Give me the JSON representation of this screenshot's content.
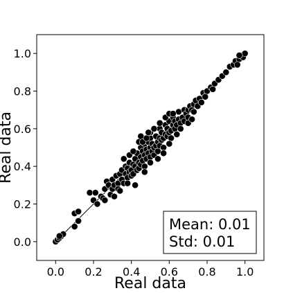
{
  "chart_data": {
    "type": "scatter",
    "xlabel": "Real data",
    "ylabel": "Real data",
    "xlim": [
      -0.1,
      1.1
    ],
    "ylim": [
      -0.1,
      1.1
    ],
    "xticks": [
      "0.0",
      "0.2",
      "0.4",
      "0.6",
      "0.8",
      "1.0"
    ],
    "yticks": [
      "0.0",
      "0.2",
      "0.4",
      "0.6",
      "0.8",
      "1.0"
    ],
    "identity_line": [
      [
        0.0,
        0.0
      ],
      [
        1.0,
        1.0
      ]
    ],
    "annotation": {
      "mean_text": "Mean: 0.01",
      "std_text": "Std: 0.01",
      "placement": "bottom-right"
    },
    "marker_color": "#000000",
    "points": [
      [
        0.0,
        0.0
      ],
      [
        0.01,
        0.01
      ],
      [
        0.02,
        0.02
      ],
      [
        0.03,
        0.03
      ],
      [
        0.04,
        0.04
      ],
      [
        0.02,
        0.03
      ],
      [
        0.1,
        0.08
      ],
      [
        0.1,
        0.15
      ],
      [
        0.12,
        0.16
      ],
      [
        0.12,
        0.11
      ],
      [
        0.18,
        0.26
      ],
      [
        0.21,
        0.26
      ],
      [
        0.2,
        0.22
      ],
      [
        0.24,
        0.24
      ],
      [
        0.25,
        0.23
      ],
      [
        0.22,
        0.2
      ],
      [
        0.26,
        0.28
      ],
      [
        0.27,
        0.32
      ],
      [
        0.28,
        0.3
      ],
      [
        0.29,
        0.25
      ],
      [
        0.3,
        0.33
      ],
      [
        0.3,
        0.28
      ],
      [
        0.31,
        0.3
      ],
      [
        0.32,
        0.35
      ],
      [
        0.33,
        0.31
      ],
      [
        0.33,
        0.28
      ],
      [
        0.34,
        0.36
      ],
      [
        0.35,
        0.33
      ],
      [
        0.35,
        0.38
      ],
      [
        0.36,
        0.31
      ],
      [
        0.37,
        0.36
      ],
      [
        0.37,
        0.4
      ],
      [
        0.38,
        0.34
      ],
      [
        0.38,
        0.39
      ],
      [
        0.39,
        0.37
      ],
      [
        0.39,
        0.42
      ],
      [
        0.4,
        0.38
      ],
      [
        0.4,
        0.35
      ],
      [
        0.41,
        0.41
      ],
      [
        0.41,
        0.36
      ],
      [
        0.42,
        0.44
      ],
      [
        0.42,
        0.4
      ],
      [
        0.43,
        0.38
      ],
      [
        0.43,
        0.47
      ],
      [
        0.44,
        0.42
      ],
      [
        0.44,
        0.39
      ],
      [
        0.45,
        0.45
      ],
      [
        0.45,
        0.5
      ],
      [
        0.45,
        0.41
      ],
      [
        0.46,
        0.43
      ],
      [
        0.46,
        0.48
      ],
      [
        0.47,
        0.46
      ],
      [
        0.47,
        0.52
      ],
      [
        0.47,
        0.4
      ],
      [
        0.48,
        0.44
      ],
      [
        0.48,
        0.49
      ],
      [
        0.49,
        0.47
      ],
      [
        0.49,
        0.53
      ],
      [
        0.5,
        0.5
      ],
      [
        0.5,
        0.45
      ],
      [
        0.5,
        0.55
      ],
      [
        0.51,
        0.48
      ],
      [
        0.51,
        0.52
      ],
      [
        0.52,
        0.5
      ],
      [
        0.52,
        0.46
      ],
      [
        0.53,
        0.56
      ],
      [
        0.53,
        0.51
      ],
      [
        0.54,
        0.53
      ],
      [
        0.54,
        0.48
      ],
      [
        0.55,
        0.55
      ],
      [
        0.55,
        0.6
      ],
      [
        0.55,
        0.51
      ],
      [
        0.56,
        0.54
      ],
      [
        0.56,
        0.58
      ],
      [
        0.57,
        0.55
      ],
      [
        0.57,
        0.5
      ],
      [
        0.58,
        0.57
      ],
      [
        0.58,
        0.62
      ],
      [
        0.59,
        0.56
      ],
      [
        0.59,
        0.6
      ],
      [
        0.6,
        0.58
      ],
      [
        0.6,
        0.64
      ],
      [
        0.61,
        0.59
      ],
      [
        0.61,
        0.55
      ],
      [
        0.62,
        0.62
      ],
      [
        0.62,
        0.66
      ],
      [
        0.63,
        0.6
      ],
      [
        0.63,
        0.64
      ],
      [
        0.64,
        0.62
      ],
      [
        0.65,
        0.65
      ],
      [
        0.65,
        0.69
      ],
      [
        0.66,
        0.63
      ],
      [
        0.67,
        0.66
      ],
      [
        0.68,
        0.7
      ],
      [
        0.68,
        0.64
      ],
      [
        0.69,
        0.68
      ],
      [
        0.7,
        0.7
      ],
      [
        0.7,
        0.66
      ],
      [
        0.71,
        0.72
      ],
      [
        0.72,
        0.7
      ],
      [
        0.73,
        0.73
      ],
      [
        0.73,
        0.69
      ],
      [
        0.74,
        0.75
      ],
      [
        0.75,
        0.72
      ],
      [
        0.76,
        0.76
      ],
      [
        0.77,
        0.74
      ],
      [
        0.78,
        0.79
      ],
      [
        0.79,
        0.77
      ],
      [
        0.8,
        0.8
      ],
      [
        0.82,
        0.82
      ],
      [
        0.83,
        0.81
      ],
      [
        0.84,
        0.84
      ],
      [
        0.86,
        0.86
      ],
      [
        0.88,
        0.88
      ],
      [
        0.9,
        0.9
      ],
      [
        0.92,
        0.93
      ],
      [
        0.94,
        0.94
      ],
      [
        0.95,
        0.96
      ],
      [
        0.97,
        0.97
      ],
      [
        0.98,
        0.99
      ],
      [
        0.99,
        0.98
      ],
      [
        1.0,
        1.0
      ],
      [
        0.97,
        0.99
      ],
      [
        0.96,
        0.94
      ],
      [
        0.44,
        0.53
      ],
      [
        0.45,
        0.56
      ],
      [
        0.46,
        0.53
      ],
      [
        0.5,
        0.58
      ],
      [
        0.52,
        0.6
      ],
      [
        0.55,
        0.63
      ],
      [
        0.58,
        0.66
      ],
      [
        0.6,
        0.68
      ],
      [
        0.62,
        0.68
      ],
      [
        0.36,
        0.44
      ],
      [
        0.39,
        0.46
      ],
      [
        0.41,
        0.48
      ],
      [
        0.48,
        0.55
      ],
      [
        0.49,
        0.58
      ],
      [
        0.42,
        0.3
      ],
      [
        0.47,
        0.37
      ],
      [
        0.5,
        0.42
      ],
      [
        0.54,
        0.44
      ],
      [
        0.57,
        0.47
      ],
      [
        0.6,
        0.52
      ],
      [
        0.64,
        0.57
      ],
      [
        0.66,
        0.6
      ],
      [
        0.7,
        0.63
      ],
      [
        0.72,
        0.65
      ],
      [
        0.34,
        0.27
      ],
      [
        0.38,
        0.31
      ],
      [
        0.31,
        0.24
      ],
      [
        0.26,
        0.22
      ]
    ]
  }
}
